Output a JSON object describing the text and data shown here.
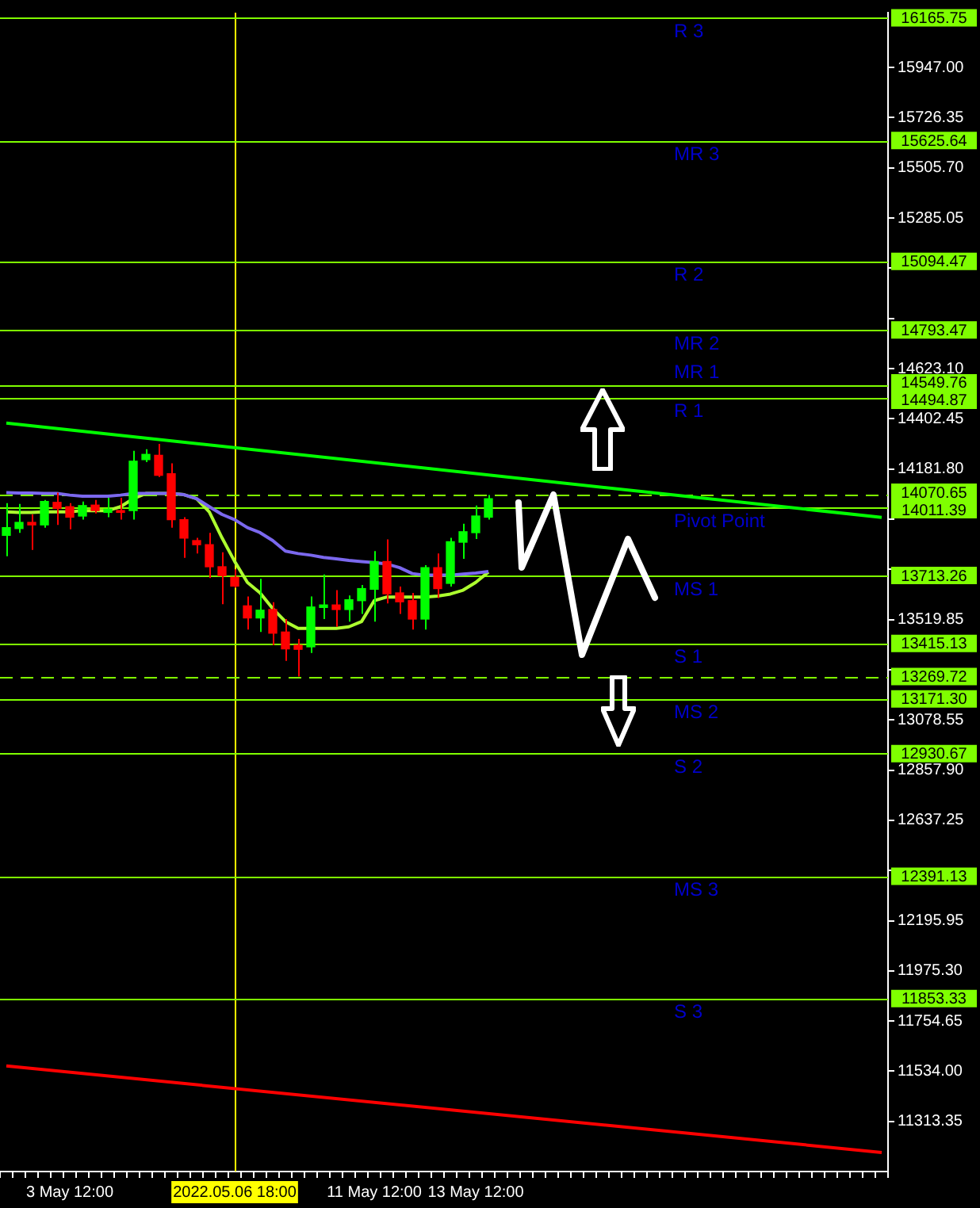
{
  "chart_data": {
    "type": "candlestick",
    "categories": [
      null,
      null,
      null,
      null,
      null,
      "3 May 12:00",
      null,
      null,
      null,
      null,
      null,
      null,
      null,
      null,
      null,
      null,
      null,
      null,
      "2022.05.06 18:00",
      null,
      null,
      null,
      null,
      null,
      null,
      null,
      null,
      null,
      null,
      "11 May 12:00",
      null,
      null,
      null,
      null,
      null,
      null,
      null,
      "13 May 12:00",
      null,
      null,
      null,
      null,
      null,
      null,
      null,
      null,
      null,
      null,
      null,
      null,
      null,
      null,
      null,
      null,
      null,
      null,
      null,
      null,
      null,
      null,
      null,
      null,
      null,
      null,
      null,
      null,
      null,
      null,
      null,
      null
    ],
    "ohlc": [
      [
        13890,
        14032,
        13798,
        13924
      ],
      [
        13920,
        14028,
        13901,
        13947
      ],
      [
        13947,
        13982,
        13826,
        13936
      ],
      [
        13936,
        14046,
        13924,
        14039
      ],
      [
        14035,
        14078,
        13936,
        14009
      ],
      [
        14016,
        14032,
        13917,
        13970
      ],
      [
        13975,
        14039,
        13959,
        14021
      ],
      [
        14023,
        14046,
        13986,
        13999
      ],
      [
        13991,
        14055,
        13970,
        14005
      ],
      [
        13999,
        14055,
        13959,
        13991
      ],
      [
        13999,
        14262,
        13959,
        14216
      ],
      [
        14223,
        14269,
        14212,
        14246
      ],
      [
        14242,
        14292,
        14147,
        14154
      ],
      [
        14161,
        14207,
        13924,
        13959
      ],
      [
        13959,
        13970,
        13791,
        13878
      ],
      [
        13867,
        13879,
        13810,
        13849
      ],
      [
        13849,
        13901,
        13702,
        13752
      ],
      [
        13752,
        13816,
        13587,
        13713
      ],
      [
        13706,
        13741,
        13660,
        13667
      ],
      [
        13580,
        13621,
        13476,
        13527
      ],
      [
        13527,
        13699,
        13465,
        13561
      ],
      [
        13564,
        13596,
        13407,
        13460
      ],
      [
        13465,
        13522,
        13338,
        13391
      ],
      [
        13407,
        13435,
        13269,
        13389
      ],
      [
        13400,
        13621,
        13373,
        13575
      ],
      [
        13573,
        13718,
        13522,
        13584
      ],
      [
        13584,
        13649,
        13488,
        13564
      ],
      [
        13564,
        13626,
        13511,
        13607
      ],
      [
        13603,
        13672,
        13545,
        13656
      ],
      [
        13653,
        13821,
        13511,
        13775
      ],
      [
        13775,
        13872,
        13591,
        13633
      ],
      [
        13637,
        13665,
        13545,
        13598
      ],
      [
        13603,
        13637,
        13476,
        13522
      ],
      [
        13522,
        13759,
        13476,
        13748
      ],
      [
        13748,
        13810,
        13614,
        13656
      ],
      [
        13679,
        13879,
        13665,
        13862
      ],
      [
        13860,
        13941,
        13787,
        13906
      ],
      [
        13902,
        14021,
        13874,
        13975
      ],
      [
        13970,
        14067,
        13959,
        14051
      ],
      null,
      null,
      null,
      null,
      null,
      null,
      null,
      null,
      null,
      null,
      null,
      null,
      null,
      null,
      null,
      null,
      null,
      null,
      null,
      null,
      null,
      null,
      null,
      null,
      null,
      null,
      null,
      null,
      null,
      null,
      null
    ],
    "colors": [
      "#00ff00",
      "#00ff00",
      "#ff0000",
      "#00ff00",
      "#ff0000",
      "#ff0000",
      "#00ff00",
      "#ff0000",
      "#00ff00",
      "#ff0000",
      "#00ff00",
      "#00ff00",
      "#ff0000",
      "#ff0000",
      "#ff0000",
      "#ff0000",
      "#ff0000",
      "#ff0000",
      "#ff0000",
      "#ff0000",
      "#00ff00",
      "#ff0000",
      "#ff0000",
      "#ff0000",
      "#00ff00",
      "#00ff00",
      "#ff0000",
      "#00ff00",
      "#00ff00",
      "#00ff00",
      "#ff0000",
      "#ff0000",
      "#ff0000",
      "#00ff00",
      "#ff0000",
      "#00ff00",
      "#00ff00",
      "#00ff00",
      "#00ff00",
      null,
      null,
      null,
      null,
      null,
      null,
      null,
      null,
      null,
      null,
      null,
      null,
      null,
      null,
      null,
      null,
      null,
      null,
      null,
      null,
      null,
      null,
      null,
      null,
      null,
      null,
      null,
      null,
      null,
      null,
      null
    ],
    "series": [
      {
        "type": "line",
        "color": "#7b68ee",
        "values": [
          14078,
          14076,
          14076,
          14074,
          14074,
          14067,
          14062,
          14062,
          14062,
          14067,
          14074,
          14074,
          14074,
          14074,
          14069,
          14051,
          14016,
          13982,
          13959,
          13924,
          13902,
          13867,
          13821,
          13810,
          13803,
          13793,
          13787,
          13780,
          13775,
          13770,
          13764,
          13748,
          13722,
          13715,
          13715,
          13715,
          13720,
          13724,
          13731,
          null,
          null,
          null,
          null,
          null,
          null,
          null,
          null,
          null,
          null,
          null,
          null,
          null,
          null,
          null,
          null,
          null,
          null,
          null,
          null,
          null,
          null,
          null,
          null,
          null,
          null,
          null,
          null,
          null,
          null,
          null
        ]
      },
      {
        "type": "line",
        "color": "#adff2f",
        "values": [
          13993,
          13991,
          13991,
          13993,
          13993,
          13993,
          13999,
          13999,
          13999,
          14016,
          14051,
          14074,
          14074,
          14074,
          14069,
          14051,
          13993,
          13879,
          13775,
          13683,
          13637,
          13568,
          13511,
          13481,
          13481,
          13481,
          13481,
          13488,
          13511,
          13603,
          13619,
          13619,
          13619,
          13619,
          13623,
          13632,
          13649,
          13683,
          13729,
          null,
          null,
          null,
          null,
          null,
          null,
          null,
          null,
          null,
          null,
          null,
          null,
          null,
          null,
          null,
          null,
          null,
          null,
          null,
          null,
          null,
          null,
          null,
          null,
          null,
          null,
          null,
          null,
          null,
          null,
          null
        ]
      },
      {
        "type": "line",
        "color": "#00ff00",
        "values": [
          14384,
          null,
          null,
          null,
          null,
          null,
          null,
          null,
          null,
          null,
          null,
          null,
          null,
          null,
          null,
          null,
          null,
          null,
          null,
          null,
          null,
          null,
          null,
          null,
          null,
          null,
          null,
          null,
          null,
          null,
          null,
          null,
          null,
          null,
          null,
          null,
          null,
          null,
          null,
          null,
          null,
          null,
          null,
          null,
          null,
          null,
          null,
          null,
          null,
          null,
          null,
          null,
          null,
          null,
          null,
          null,
          null,
          null,
          null,
          null,
          null,
          null,
          null,
          null,
          null,
          null,
          null,
          null,
          null,
          13969
        ]
      },
      {
        "type": "line",
        "color": "#ff0000",
        "values": [
          11557,
          null,
          null,
          null,
          null,
          null,
          null,
          null,
          null,
          null,
          null,
          null,
          null,
          null,
          null,
          null,
          null,
          null,
          null,
          null,
          null,
          null,
          null,
          null,
          null,
          null,
          null,
          null,
          null,
          null,
          null,
          null,
          null,
          null,
          null,
          null,
          null,
          null,
          null,
          null,
          null,
          null,
          null,
          null,
          null,
          null,
          null,
          null,
          null,
          null,
          null,
          null,
          null,
          null,
          null,
          null,
          null,
          null,
          null,
          null,
          null,
          null,
          null,
          null,
          null,
          null,
          null,
          null,
          null,
          11177
        ]
      }
    ],
    "ylim": [
      11093,
      16188
    ],
    "yticks": [
      {
        "value": 15947,
        "label": "15947.00"
      },
      {
        "value": 15726.35,
        "label": "15726.35"
      },
      {
        "value": 15505.7,
        "label": "15505.70"
      },
      {
        "value": 15285.05,
        "label": "15285.05"
      },
      {
        "value": 15064.4,
        "label": null
      },
      {
        "value": 14843.75,
        "label": null
      },
      {
        "value": 14623.1,
        "label": "14623.10"
      },
      {
        "value": 14402.45,
        "label": "14402.45"
      },
      {
        "value": 14181.8,
        "label": "14181.80"
      },
      {
        "value": 13961.15,
        "label": null
      },
      {
        "value": 13740.5,
        "label": null
      },
      {
        "value": 13519.85,
        "label": "13519.85"
      },
      {
        "value": 13299.2,
        "label": null
      },
      {
        "value": 13078.55,
        "label": "13078.55"
      },
      {
        "value": 12857.9,
        "label": "12857.90"
      },
      {
        "value": 12637.25,
        "label": "12637.25"
      },
      {
        "value": 12416.6,
        "label": null
      },
      {
        "value": 12195.95,
        "label": "12195.95"
      },
      {
        "value": 11975.3,
        "label": "11975.30"
      },
      {
        "value": 11754.65,
        "label": "11754.65"
      },
      {
        "value": 11534,
        "label": "11534.00"
      },
      {
        "value": 11313.35,
        "label": "11313.35"
      }
    ],
    "ref_lines": [
      {
        "axis": "x",
        "value": "2022.05.06 18:00",
        "label": null,
        "color": "#ffff00"
      },
      {
        "axis": "y",
        "value": 16165.75,
        "label": "16165.75",
        "color": "#7fff00"
      },
      {
        "axis": "y",
        "value": 15625.64,
        "label": "15625.64",
        "color": "#7fff00"
      },
      {
        "axis": "y",
        "value": 15094.47,
        "label": "15094.47",
        "color": "#7fff00"
      },
      {
        "axis": "y",
        "value": 14793.47,
        "label": "14793.47",
        "color": "#7fff00"
      },
      {
        "axis": "y",
        "value": 14549.76,
        "label": "14549.76",
        "color": "#7fff00"
      },
      {
        "axis": "y",
        "value": 14494.87,
        "label": "14494.87",
        "color": "#7fff00"
      },
      {
        "axis": "y",
        "value": 14070.65,
        "label": "14070.65",
        "color": "#7fff00",
        "line_style": "dashed"
      },
      {
        "axis": "y",
        "value": 14011.39,
        "label": "14011.39",
        "color": "#7fff00"
      },
      {
        "axis": "y",
        "value": 13713.26,
        "label": "13713.26",
        "color": "#7fff00"
      },
      {
        "axis": "y",
        "value": 13415.13,
        "label": "13415.13",
        "color": "#7fff00"
      },
      {
        "axis": "y",
        "value": 13269.72,
        "label": "13269.72",
        "color": "#7fff00",
        "line_style": "dashed"
      },
      {
        "axis": "y",
        "value": 13171.3,
        "label": "13171.30",
        "color": "#7fff00"
      },
      {
        "axis": "y",
        "value": 12930.67,
        "label": "12930.67",
        "color": "#7fff00"
      },
      {
        "axis": "y",
        "value": 12391.13,
        "label": "12391.13",
        "color": "#7fff00"
      },
      {
        "axis": "y",
        "value": 11853.33,
        "label": "11853.33",
        "color": "#7fff00"
      }
    ],
    "annotations": [
      {
        "text": "R 3",
        "y": 16165.75
      },
      {
        "text": "MR 3",
        "y": 15625.64
      },
      {
        "text": "R 2",
        "y": 15094.47
      },
      {
        "text": "MR 2",
        "y": 14793.47
      },
      {
        "text": "MR 1",
        "y": 14549.76
      },
      {
        "text": "R 1",
        "y": 14494.87
      },
      {
        "text": "Pivot Point",
        "y": 14011.39
      },
      {
        "text": "MS 1",
        "y": 13713.26
      },
      {
        "text": "S 1",
        "y": 13415.13
      },
      {
        "text": "MS 2",
        "y": 13171.3
      },
      {
        "text": "S 2",
        "y": 12930.67
      },
      {
        "text": "MS 3",
        "y": 12391.13
      },
      {
        "text": "S 3",
        "y": 11853.33
      }
    ]
  }
}
